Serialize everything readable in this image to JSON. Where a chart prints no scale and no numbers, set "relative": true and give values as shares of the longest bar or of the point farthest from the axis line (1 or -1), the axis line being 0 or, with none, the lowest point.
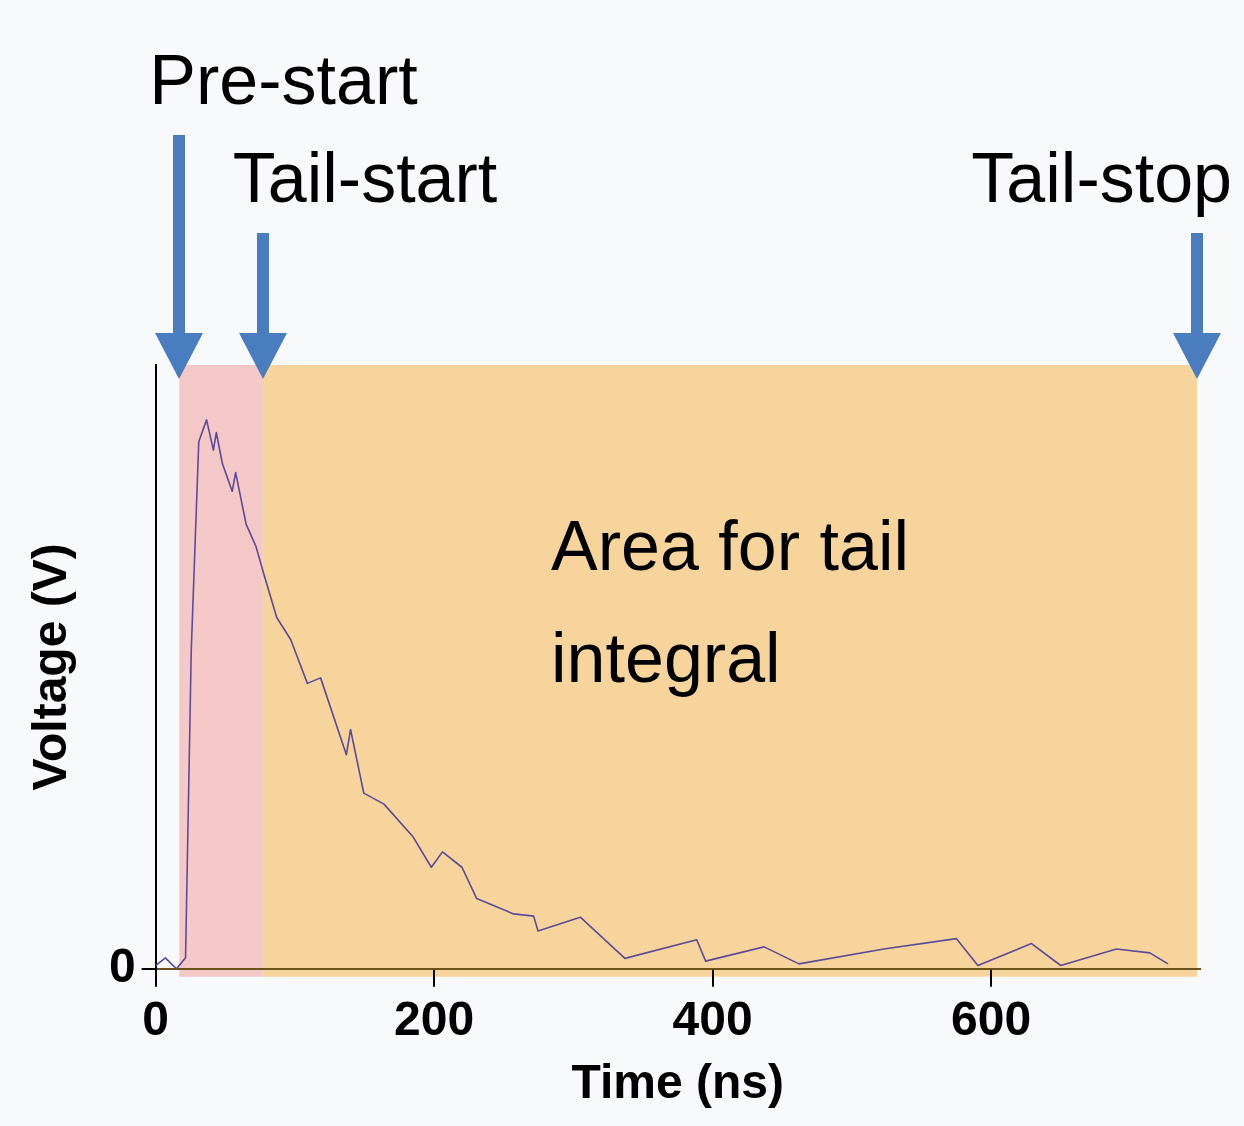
{
  "chart_data": {
    "type": "line",
    "relative": true,
    "xlabel": "Time (ns)",
    "ylabel": "Voltage (V)",
    "xlim": [
      0,
      750
    ],
    "xticks": [
      0,
      200,
      400,
      600
    ],
    "grid": false,
    "legend": false,
    "marker": "none",
    "line_style": "solid",
    "series": [
      {
        "color": "#5a4a9a",
        "x": [
          0,
          7,
          15,
          21.5,
          25.6,
          31,
          36.6,
          41.5,
          43.6,
          48,
          55,
          57.5,
          65,
          72,
          77.6,
          87,
          97,
          109,
          118.5,
          137,
          140,
          149.5,
          164,
          185,
          198,
          206,
          220,
          230.6,
          257,
          271.5,
          274.6,
          305,
          337,
          388.6,
          395,
          437,
          462,
          523,
          575,
          590.5,
          629,
          650,
          690,
          714,
          727
        ],
        "values": [
          0.006,
          0.02,
          0,
          0.02,
          0.58,
          0.96,
          1,
          0.945,
          0.977,
          0.92,
          0.87,
          0.904,
          0.81,
          0.77,
          0.72,
          0.64,
          0.6,
          0.52,
          0.53,
          0.39,
          0.436,
          0.32,
          0.3,
          0.24,
          0.185,
          0.213,
          0.185,
          0.128,
          0.1,
          0.096,
          0.069,
          0.094,
          0.019,
          0.053,
          0.014,
          0.04,
          0.009,
          0.036,
          0.055,
          0.006,
          0.046,
          0.006,
          0.036,
          0.029,
          0.009
        ]
      }
    ],
    "bands": [
      {
        "axis": "x",
        "from": 17,
        "to": 77,
        "color": "#f5c8c8"
      },
      {
        "axis": "x",
        "from": 77,
        "to": 748,
        "label": "Area for tail integral",
        "color": "#f7d49b"
      }
    ],
    "annotations": [
      "Pre-start",
      "Tail-start",
      "Tail-stop",
      "0"
    ]
  }
}
